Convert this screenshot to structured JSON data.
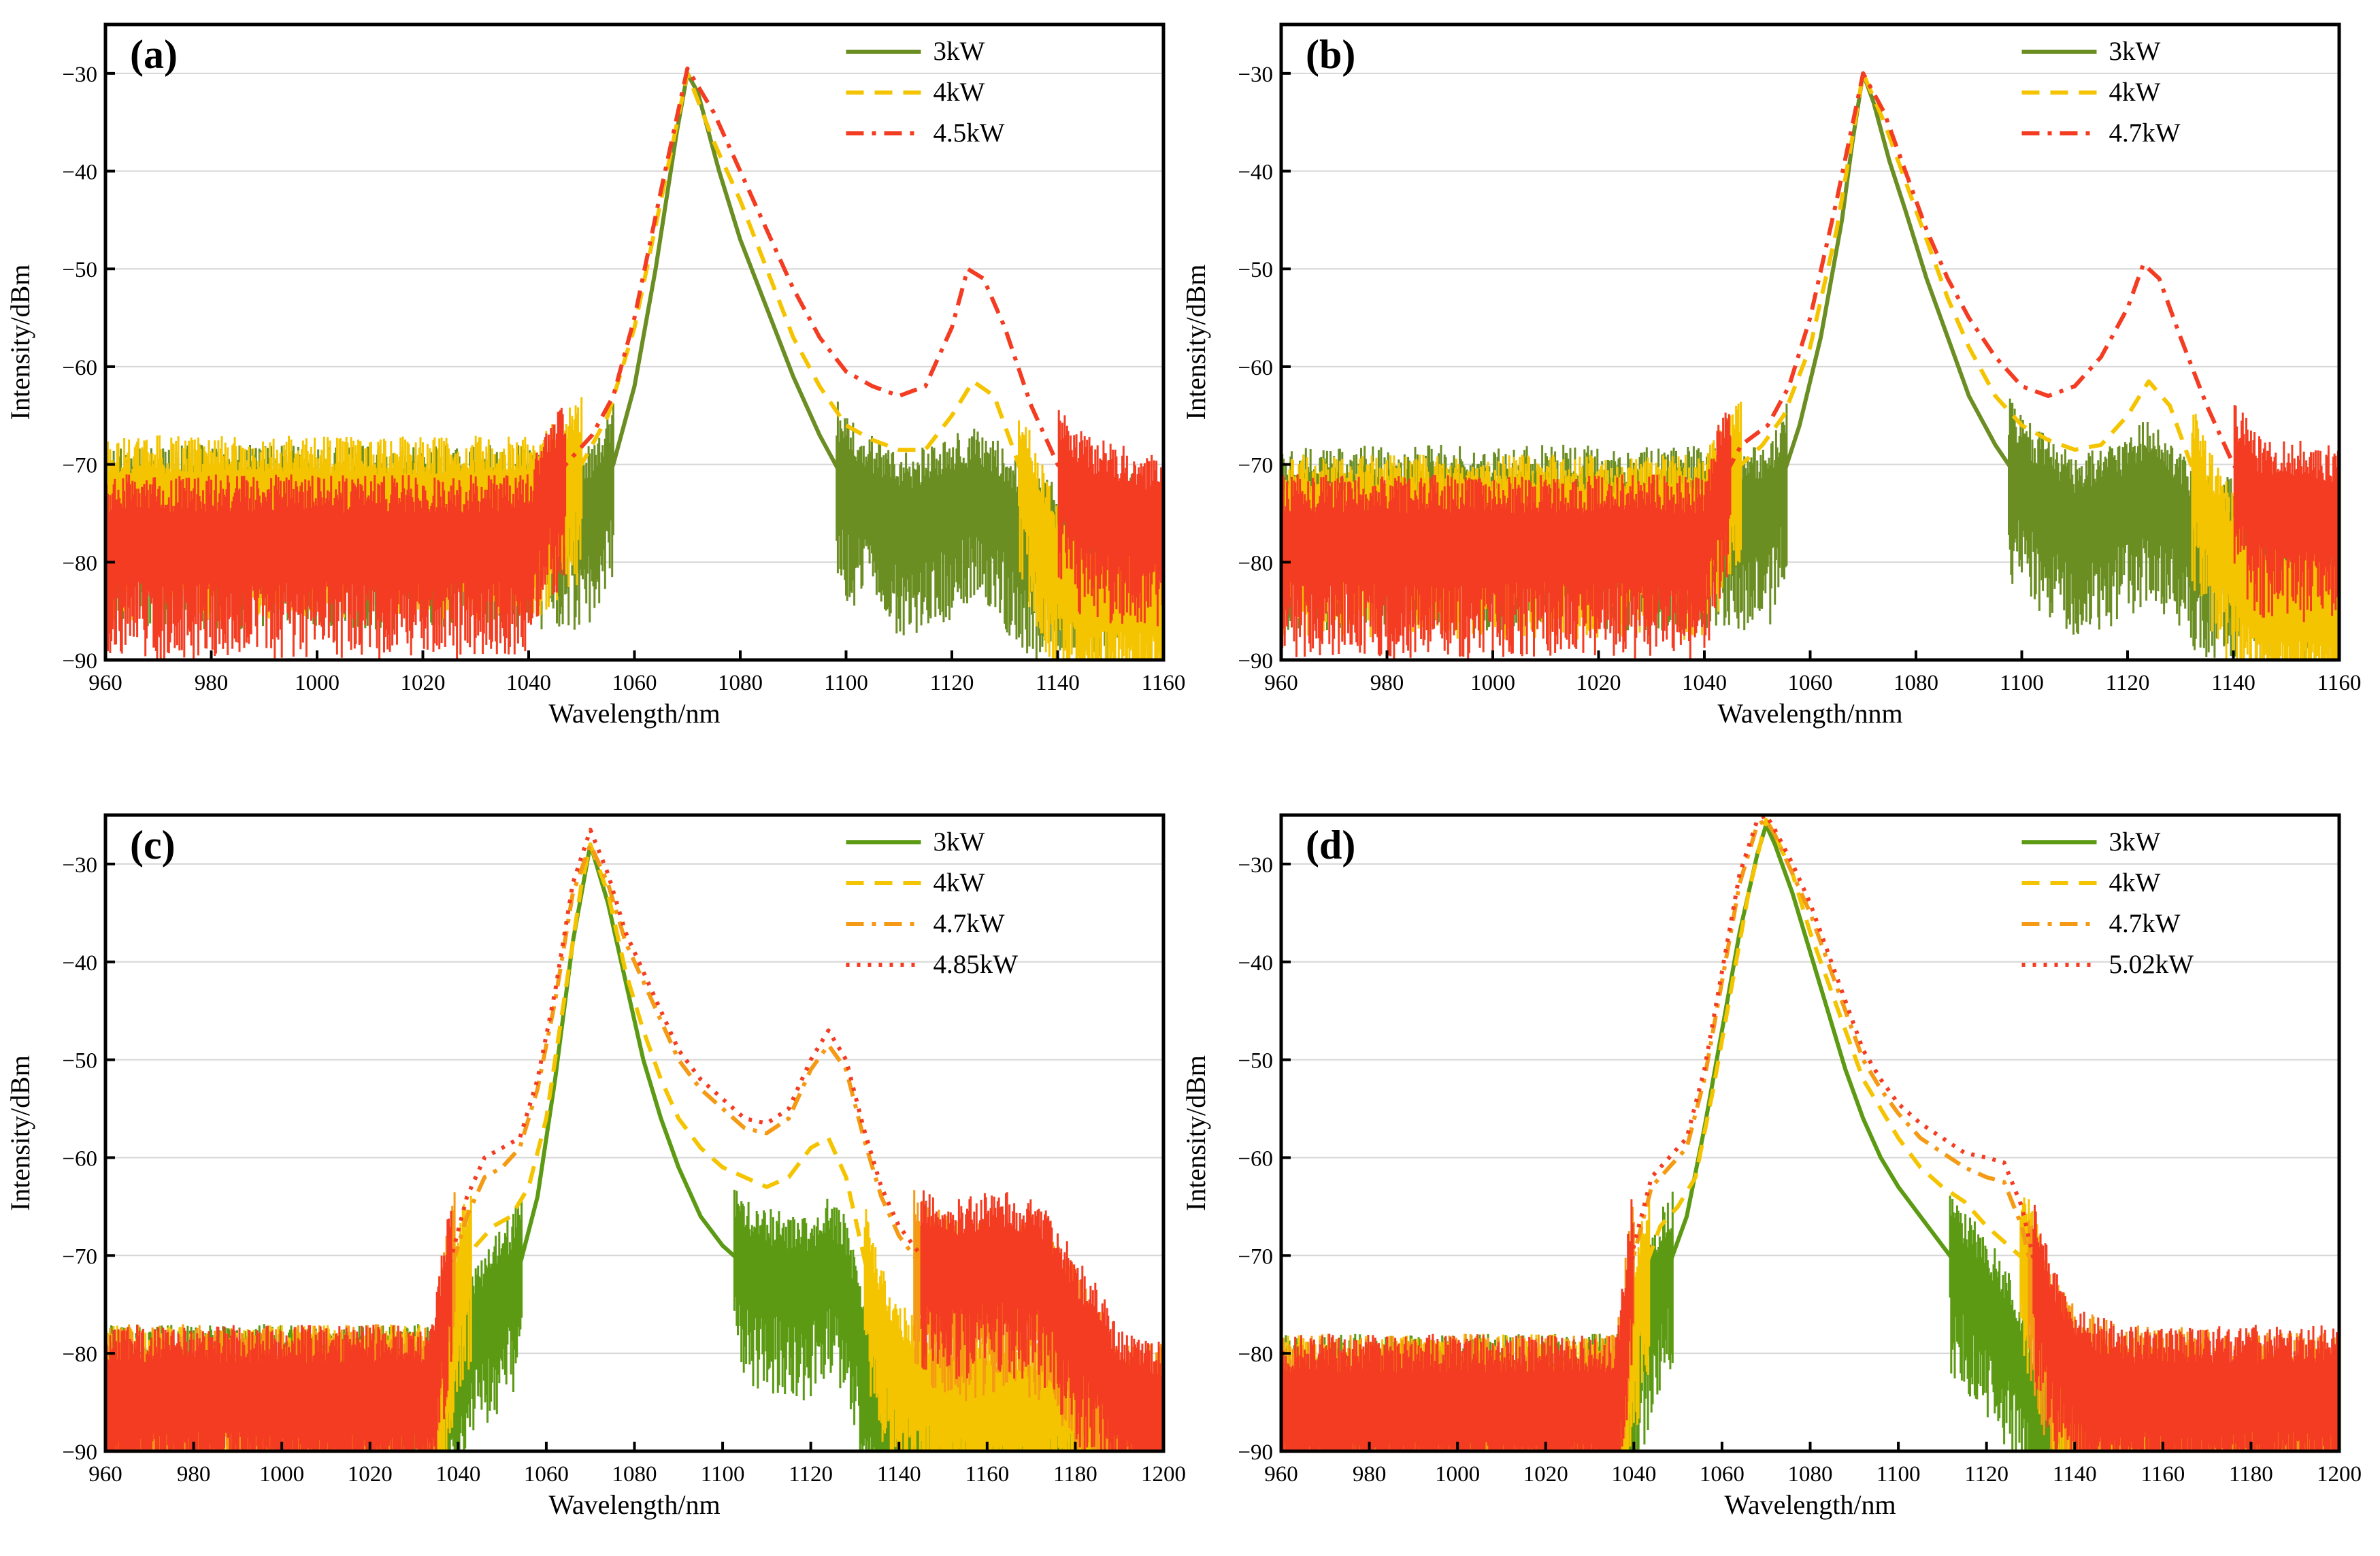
{
  "colors": {
    "green": "#5b9a12",
    "olive": "#6b8e23",
    "yellow": "#f5c400",
    "orange": "#f59a14",
    "red": "#f43c22",
    "grid": "#d6d6d6",
    "axis": "#000000"
  },
  "chart_data": [
    {
      "type": "line",
      "panel_label": "(a)",
      "xlabel": "Wavelength/nm",
      "ylabel": "Intensity/dBm",
      "xlim": [
        960,
        1160
      ],
      "ylim": [
        -90,
        -25
      ],
      "xticks": [
        "960",
        "980",
        "1000",
        "1020",
        "1040",
        "1060",
        "1080",
        "1100",
        "1120",
        "1140",
        "1160"
      ],
      "yticks": [
        "-90",
        "-80",
        "-70",
        "-60",
        "-50",
        "-40",
        "-30"
      ],
      "grid": "horizontal",
      "legend_position": "top-right",
      "series": [
        {
          "name": "3kW",
          "color": "#6b8e23",
          "dash": "solid",
          "x": [
            960,
            1040,
            1052,
            1056,
            1060,
            1064,
            1068,
            1070,
            1072,
            1076,
            1080,
            1085,
            1090,
            1095,
            1100,
            1105,
            1110,
            1115,
            1120,
            1125,
            1130,
            1134,
            1160
          ],
          "y": [
            -75,
            -75,
            -75,
            -70,
            -62,
            -50,
            -36,
            -30,
            -32,
            -40,
            -47,
            -54,
            -61,
            -67,
            -72,
            -74,
            -76,
            -75,
            -74,
            -73,
            -75,
            -78,
            -78
          ]
        },
        {
          "name": "4kW",
          "color": "#f5c400",
          "dash": "dashed",
          "x": [
            960,
            1040,
            1042,
            1046,
            1050,
            1055,
            1060,
            1065,
            1070,
            1075,
            1080,
            1085,
            1090,
            1095,
            1100,
            1105,
            1110,
            1115,
            1120,
            1124,
            1128,
            1132,
            1135,
            1140,
            1145,
            1160
          ],
          "y": [
            -74,
            -74,
            -74,
            -72,
            -70,
            -65,
            -56,
            -43,
            -30,
            -37,
            -43,
            -50,
            -57,
            -62,
            -66,
            -67.5,
            -68.5,
            -68.5,
            -65,
            -61.5,
            -63,
            -69,
            -74,
            -80,
            -83,
            -83
          ]
        },
        {
          "name": "4.5kW",
          "color": "#f43c22",
          "dash": "dashdot",
          "x": [
            960,
            1040,
            1043,
            1047,
            1052,
            1056,
            1060,
            1065,
            1070,
            1075,
            1080,
            1085,
            1090,
            1095,
            1100,
            1105,
            1110,
            1115,
            1120,
            1123,
            1126,
            1130,
            1135,
            1140,
            1145,
            1160
          ],
          "y": [
            -78,
            -78,
            -73,
            -70,
            -67,
            -63,
            -55,
            -42,
            -29.5,
            -34,
            -40,
            -46,
            -52,
            -57,
            -60.5,
            -62,
            -63,
            -62,
            -56,
            -50,
            -51,
            -56,
            -64,
            -70,
            -74,
            -76
          ]
        }
      ]
    },
    {
      "type": "line",
      "panel_label": "(b)",
      "xlabel": "Wavelength/nnm",
      "ylabel": "Intensity/dBm",
      "xlim": [
        960,
        1160
      ],
      "ylim": [
        -90,
        -25
      ],
      "xticks": [
        "960",
        "980",
        "1000",
        "1020",
        "1040",
        "1060",
        "1080",
        "1100",
        "1120",
        "1140",
        "1160"
      ],
      "yticks": [
        "-90",
        "-80",
        "-70",
        "-60",
        "-50",
        "-40",
        "-30"
      ],
      "grid": "horizontal",
      "legend_position": "top-right",
      "series": [
        {
          "name": "3kW",
          "color": "#6b8e23",
          "dash": "solid",
          "x": [
            960,
            1040,
            1052,
            1055,
            1058,
            1062,
            1066,
            1068,
            1070,
            1072,
            1075,
            1078,
            1082,
            1086,
            1090,
            1095,
            1100,
            1105,
            1110,
            1115,
            1120,
            1124,
            1128,
            1134,
            1160
          ],
          "y": [
            -75,
            -75,
            -75,
            -71,
            -66,
            -57,
            -45,
            -37,
            -30,
            -33,
            -39,
            -44,
            -51,
            -57,
            -63,
            -68,
            -72,
            -74,
            -76,
            -75,
            -74,
            -72,
            -74,
            -78,
            -78
          ]
        },
        {
          "name": "4kW",
          "color": "#f5c400",
          "dash": "dashed",
          "x": [
            960,
            1040,
            1043,
            1047,
            1051,
            1055,
            1060,
            1065,
            1070,
            1074,
            1078,
            1082,
            1086,
            1090,
            1095,
            1100,
            1105,
            1110,
            1115,
            1120,
            1124,
            1128,
            1132,
            1135,
            1140,
            1145,
            1160
          ],
          "y": [
            -76,
            -76,
            -73,
            -70,
            -68,
            -65,
            -58,
            -46,
            -30,
            -35,
            -41,
            -47,
            -53,
            -58,
            -63,
            -66,
            -67.5,
            -68.5,
            -68,
            -65,
            -61.5,
            -64,
            -70,
            -75,
            -80,
            -84,
            -84
          ]
        },
        {
          "name": "4.7kW",
          "color": "#f43c22",
          "dash": "dashdot",
          "x": [
            960,
            1040,
            1043,
            1047,
            1052,
            1056,
            1060,
            1065,
            1070,
            1074,
            1078,
            1082,
            1086,
            1090,
            1095,
            1100,
            1105,
            1110,
            1115,
            1120,
            1123,
            1126,
            1130,
            1135,
            1140,
            1145,
            1160
          ],
          "y": [
            -78,
            -78,
            -72,
            -68,
            -66,
            -62,
            -55,
            -43,
            -30,
            -34,
            -40,
            -46,
            -51,
            -55,
            -59,
            -62,
            -63,
            -62,
            -59,
            -54,
            -49.5,
            -51,
            -57,
            -64,
            -70,
            -74,
            -75
          ]
        }
      ]
    },
    {
      "type": "line",
      "panel_label": "(c)",
      "xlabel": "Wavelength/nm",
      "ylabel": "Intensity/dBm",
      "xlim": [
        960,
        1200
      ],
      "ylim": [
        -90,
        -25
      ],
      "xticks": [
        "960",
        "980",
        "1000",
        "1020",
        "1040",
        "1060",
        "1080",
        "1100",
        "1120",
        "1140",
        "1160",
        "1180",
        "1200"
      ],
      "yticks": [
        "-90",
        "-80",
        "-70",
        "-60",
        "-50",
        "-40",
        "-30"
      ],
      "grid": "horizontal",
      "legend_position": "top-right",
      "series": [
        {
          "name": "3kW",
          "color": "#5b9a12",
          "dash": "solid",
          "x": [
            960,
            1040,
            1042,
            1046,
            1050,
            1054,
            1058,
            1062,
            1066,
            1070,
            1074,
            1078,
            1082,
            1086,
            1090,
            1095,
            1100,
            1105,
            1110,
            1115,
            1120,
            1124,
            1128,
            1132,
            1135,
            1140,
            1200
          ],
          "y": [
            -84,
            -84,
            -78,
            -76,
            -74,
            -71,
            -64,
            -52,
            -38,
            -28,
            -34,
            -42,
            -50,
            -56,
            -61,
            -66,
            -69,
            -71,
            -72,
            -72.5,
            -73,
            -71,
            -73,
            -80,
            -86,
            -89,
            -89
          ]
        },
        {
          "name": "4kW",
          "color": "#f5c400",
          "dash": "dashed",
          "x": [
            960,
            1036,
            1040,
            1044,
            1048,
            1052,
            1056,
            1060,
            1064,
            1068,
            1070,
            1074,
            1078,
            1082,
            1086,
            1090,
            1095,
            1100,
            1105,
            1110,
            1115,
            1120,
            1124,
            1128,
            1132,
            1136,
            1140,
            1150,
            1160,
            1170,
            1180,
            1185,
            1200
          ],
          "y": [
            -84,
            -84,
            -73,
            -69,
            -67,
            -66,
            -63,
            -56,
            -44,
            -32,
            -28,
            -33,
            -41,
            -47,
            -52,
            -56,
            -59,
            -61,
            -62,
            -63,
            -62,
            -59,
            -58,
            -62,
            -70,
            -78,
            -82,
            -84,
            -85,
            -85,
            -84,
            -87,
            -87
          ]
        },
        {
          "name": "4.7kW",
          "color": "#f59a14",
          "dash": "dashdot",
          "x": [
            960,
            1034,
            1038,
            1042,
            1046,
            1050,
            1054,
            1058,
            1062,
            1066,
            1070,
            1074,
            1078,
            1082,
            1086,
            1090,
            1095,
            1100,
            1105,
            1110,
            1115,
            1120,
            1124,
            1128,
            1132,
            1136,
            1140,
            1145,
            1150,
            1155,
            1160,
            1165,
            1170,
            1175,
            1180,
            1185,
            1190,
            1200
          ],
          "y": [
            -84,
            -84,
            -72,
            -66,
            -62,
            -61,
            -59,
            -53,
            -44,
            -33,
            -28,
            -32,
            -38,
            -42,
            -46,
            -50,
            -53,
            -55,
            -57,
            -57.5,
            -56,
            -51,
            -48.5,
            -51,
            -58,
            -64,
            -68,
            -71,
            -72.5,
            -73.5,
            -73,
            -72.5,
            -73,
            -75,
            -78,
            -82,
            -86,
            -86
          ]
        },
        {
          "name": "4.85kW",
          "color": "#f43c22",
          "dash": "dotted",
          "x": [
            960,
            1034,
            1038,
            1042,
            1046,
            1050,
            1054,
            1058,
            1062,
            1066,
            1070,
            1074,
            1078,
            1082,
            1086,
            1090,
            1095,
            1100,
            1105,
            1110,
            1115,
            1120,
            1124,
            1128,
            1132,
            1136,
            1140,
            1145,
            1150,
            1155,
            1160,
            1165,
            1170,
            1175,
            1180,
            1185,
            1190,
            1200
          ],
          "y": [
            -84,
            -84,
            -71,
            -64,
            -60,
            -59,
            -58,
            -52,
            -43,
            -32,
            -26.5,
            -31,
            -37,
            -41,
            -45,
            -49,
            -52,
            -54,
            -56,
            -56.5,
            -55,
            -50,
            -47,
            -50,
            -57,
            -63,
            -67,
            -70,
            -71,
            -71,
            -70.5,
            -70.5,
            -71,
            -73,
            -77,
            -80,
            -84,
            -86
          ]
        }
      ]
    },
    {
      "type": "line",
      "panel_label": "(d)",
      "xlabel": "Wavelength/nm",
      "ylabel": "Intensity/dBm",
      "xlim": [
        960,
        1200
      ],
      "ylim": [
        -90,
        -25
      ],
      "xticks": [
        "960",
        "980",
        "1000",
        "1020",
        "1040",
        "1060",
        "1080",
        "1100",
        "1120",
        "1140",
        "1160",
        "1180",
        "1200"
      ],
      "yticks": [
        "-90",
        "-80",
        "-70",
        "-60",
        "-50",
        "-40",
        "-30"
      ],
      "grid": "horizontal",
      "legend_position": "top-right",
      "series": [
        {
          "name": "3kW",
          "color": "#5b9a12",
          "dash": "solid",
          "x": [
            960,
            1040,
            1042,
            1045,
            1048,
            1052,
            1056,
            1060,
            1064,
            1068,
            1070,
            1072,
            1076,
            1080,
            1084,
            1088,
            1092,
            1096,
            1100,
            1105,
            1110,
            1115,
            1120,
            1125,
            1128,
            1131,
            1135,
            1200
          ],
          "y": [
            -85,
            -85,
            -78,
            -73,
            -71,
            -66,
            -57,
            -47,
            -37,
            -29,
            -26,
            -28,
            -33,
            -39,
            -45,
            -51,
            -56,
            -60,
            -63,
            -66,
            -69,
            -72,
            -75,
            -78,
            -81,
            -85,
            -88,
            -88
          ]
        },
        {
          "name": "4kW",
          "color": "#f5c400",
          "dash": "dashed",
          "x": [
            960,
            1038,
            1042,
            1046,
            1050,
            1054,
            1058,
            1062,
            1066,
            1070,
            1072,
            1076,
            1080,
            1084,
            1088,
            1092,
            1096,
            1100,
            1105,
            1110,
            1115,
            1120,
            1125,
            1130,
            1133,
            1136,
            1140,
            1145,
            1200
          ],
          "y": [
            -85,
            -85,
            -72,
            -67,
            -65,
            -62,
            -53,
            -43,
            -33,
            -25.5,
            -27,
            -31,
            -37,
            -42,
            -47,
            -52,
            -55,
            -58,
            -61,
            -63,
            -64.5,
            -67,
            -69,
            -71,
            -76,
            -82,
            -86,
            -88,
            -88
          ]
        },
        {
          "name": "4.7kW",
          "color": "#f59a14",
          "dash": "dashdot",
          "x": [
            960,
            1036,
            1040,
            1044,
            1048,
            1052,
            1056,
            1060,
            1064,
            1068,
            1070,
            1072,
            1076,
            1080,
            1084,
            1088,
            1092,
            1096,
            1100,
            1105,
            1110,
            1115,
            1120,
            1124,
            1128,
            1132,
            1135,
            1140,
            1145,
            1150,
            1200
          ],
          "y": [
            -85,
            -85,
            -70,
            -63,
            -61,
            -59,
            -52,
            -42,
            -32,
            -26,
            -25.5,
            -27,
            -31,
            -35,
            -40,
            -45,
            -50,
            -53,
            -55.5,
            -58,
            -59.5,
            -61,
            -62,
            -62.5,
            -67,
            -75,
            -79,
            -82,
            -83,
            -84,
            -85
          ]
        },
        {
          "name": "5.02kW",
          "color": "#f43c22",
          "dash": "dotted",
          "x": [
            960,
            1036,
            1040,
            1044,
            1048,
            1052,
            1056,
            1060,
            1064,
            1068,
            1070,
            1072,
            1076,
            1080,
            1084,
            1088,
            1092,
            1096,
            1100,
            1105,
            1110,
            1115,
            1120,
            1124,
            1128,
            1132,
            1135,
            1140,
            1145,
            1150,
            1200
          ],
          "y": [
            -85,
            -85,
            -69,
            -62,
            -60,
            -58,
            -51,
            -41,
            -31,
            -25.5,
            -25,
            -26.5,
            -30,
            -34,
            -39,
            -44,
            -49,
            -52,
            -54.5,
            -56.5,
            -58,
            -59.5,
            -60,
            -60.5,
            -65,
            -73,
            -78,
            -81,
            -83,
            -84,
            -84
          ]
        }
      ]
    }
  ]
}
